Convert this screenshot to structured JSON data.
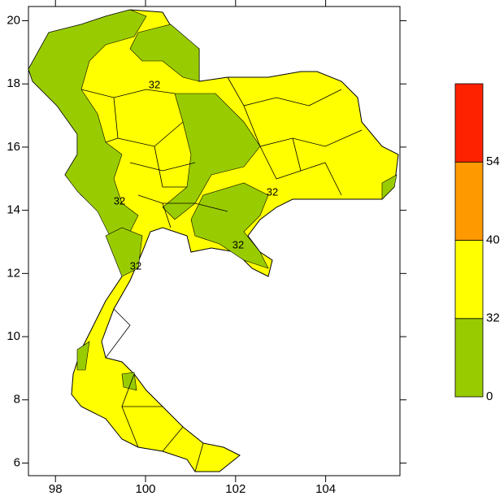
{
  "chart_data": {
    "type": "map",
    "xlim": [
      97.4,
      105.65
    ],
    "ylim": [
      5.6,
      20.45
    ],
    "xticks": [
      98,
      100,
      102,
      104
    ],
    "yticks": [
      6,
      8,
      10,
      12,
      14,
      16,
      18,
      20
    ],
    "colorbar": {
      "levels": [
        0,
        32,
        40,
        54
      ],
      "colors": [
        "#99cc00",
        "#ffff00",
        "#ff9900",
        "#ff2200"
      ]
    },
    "contour_labels": [
      32,
      32,
      32,
      32,
      32
    ]
  }
}
